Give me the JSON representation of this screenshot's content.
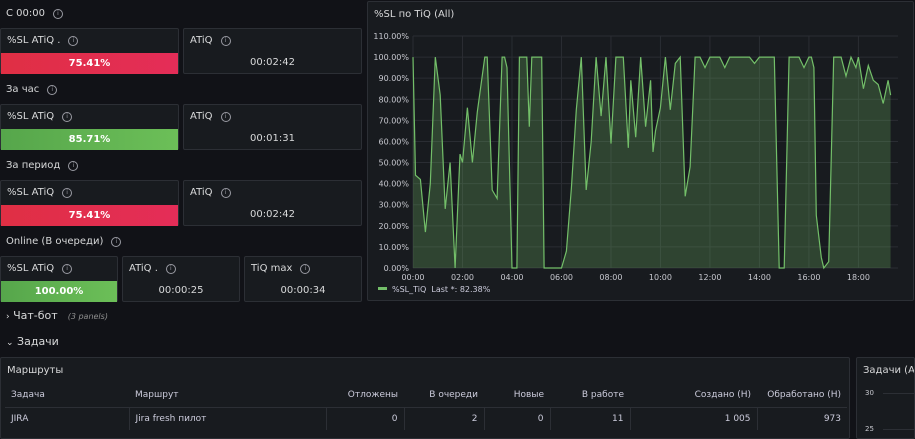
{
  "rows": {
    "since_midnight": "С 00:00",
    "per_hour": "За час",
    "per_period": "За период",
    "online": "Online (В очереди)"
  },
  "stats": {
    "r1_sl_title": "%SL ATiQ .",
    "r1_sl_value": "75.41%",
    "r1_atiq_title": "ATiQ",
    "r1_atiq_value": "00:02:42",
    "r2_sl_title": "%SL ATiQ",
    "r2_sl_value": "85.71%",
    "r2_atiq_title": "ATiQ",
    "r2_atiq_value": "00:01:31",
    "r3_sl_title": "%SL ATiQ",
    "r3_sl_value": "75.41%",
    "r3_atiq_title": "ATiQ",
    "r3_atiq_value": "00:02:42",
    "r4_sl_title": "%SL ATiQ",
    "r4_sl_value": "100.00%",
    "r4_atiq_title": "ATiQ .",
    "r4_atiq_value": "00:00:25",
    "r4_tiq_title": "TiQ max",
    "r4_tiq_value": "00:00:34"
  },
  "colors": {
    "red": "#e02f44",
    "green": "#56a64b",
    "line": "#73bf69"
  },
  "chart_title": "%SL по TiQ (All)",
  "legend": {
    "name": "%SL_TiQ",
    "last": "Last *: 82.38%"
  },
  "chart_data": {
    "type": "area",
    "title": "%SL по TiQ (All)",
    "xlabel": "",
    "ylabel": "",
    "ylim": [
      0,
      110
    ],
    "grid": true,
    "legend_position": "bottom-left",
    "y_ticks": [
      "0.00%",
      "10.00%",
      "20.00%",
      "30.00%",
      "40.00%",
      "50.00%",
      "60.00%",
      "70.00%",
      "80.00%",
      "90.00%",
      "100.00%",
      "110.00%"
    ],
    "x_ticks": [
      "00:00",
      "02:00",
      "04:00",
      "06:00",
      "08:00",
      "10:00",
      "12:00",
      "14:00",
      "16:00",
      "18:00"
    ],
    "series": [
      {
        "name": "%SL_TiQ",
        "x": [
          0,
          0.1,
          0.3,
          0.5,
          0.7,
          0.9,
          1.1,
          1.3,
          1.5,
          1.7,
          1.9,
          2.0,
          2.2,
          2.4,
          2.6,
          2.9,
          3.0,
          3.2,
          3.4,
          3.6,
          3.7,
          3.8,
          4.0,
          4.2,
          4.3,
          4.4,
          4.6,
          4.7,
          4.8,
          5.0,
          5.1,
          5.2,
          5.3,
          5.5,
          5.8,
          6.0,
          6.2,
          6.4,
          6.6,
          6.8,
          7.0,
          7.2,
          7.4,
          7.6,
          7.8,
          8.0,
          8.2,
          8.3,
          8.5,
          8.7,
          8.8,
          9.0,
          9.2,
          9.4,
          9.6,
          9.7,
          9.8,
          10.0,
          10.2,
          10.4,
          10.6,
          10.8,
          11.0,
          11.2,
          11.4,
          11.6,
          11.8,
          12.0,
          12.2,
          12.4,
          12.6,
          12.8,
          13.0,
          13.2,
          13.4,
          13.6,
          13.8,
          14.0,
          14.2,
          14.4,
          14.6,
          14.8,
          15.0,
          15.2,
          15.4,
          15.6,
          15.8,
          16.0,
          16.1,
          16.2,
          16.3,
          16.5,
          16.6,
          16.8,
          17.0,
          17.2,
          17.3,
          17.5,
          17.7,
          17.9,
          18.0,
          18.2,
          18.4,
          18.6,
          18.8,
          19.0,
          19.2,
          19.3
        ],
        "values": [
          100,
          44,
          42,
          17,
          40,
          100,
          82,
          28,
          50,
          0,
          54,
          50,
          76,
          50,
          74,
          100,
          100,
          37,
          33,
          100,
          100,
          95,
          0,
          0,
          100,
          100,
          100,
          67,
          100,
          100,
          100,
          100,
          0,
          0,
          0,
          0,
          8,
          38,
          75,
          100,
          37,
          60,
          100,
          72,
          100,
          59,
          100,
          100,
          100,
          57,
          89,
          62,
          100,
          67,
          89,
          55,
          65,
          76,
          100,
          75,
          97,
          100,
          34,
          48,
          100,
          100,
          95,
          100,
          100,
          100,
          95,
          100,
          100,
          100,
          100,
          100,
          97,
          100,
          100,
          100,
          100,
          0,
          0,
          100,
          100,
          100,
          95,
          100,
          100,
          95,
          25,
          5,
          0,
          3,
          100,
          100,
          100,
          91,
          100,
          95,
          100,
          85,
          96,
          89,
          87,
          78,
          89,
          82
        ]
      }
    ]
  },
  "chat_bot": {
    "label": "Чат-бот",
    "note": "(3 panels)"
  },
  "tasks": {
    "label": "Задачи"
  },
  "routes": {
    "title": "Маршруты",
    "headers": [
      "Задача",
      "Маршрут",
      "Отложены",
      "В очереди",
      "Новые",
      "В работе",
      "Создано (Н)",
      "Обработано (Н)"
    ],
    "rows": [
      [
        "JIRA",
        "Jira fresh пилот",
        "0",
        "2",
        "0",
        "11",
        "1 005",
        "973"
      ]
    ]
  },
  "tasks_panel": {
    "title": "Задачи (All)",
    "y_ticks": [
      "30",
      "25"
    ]
  }
}
